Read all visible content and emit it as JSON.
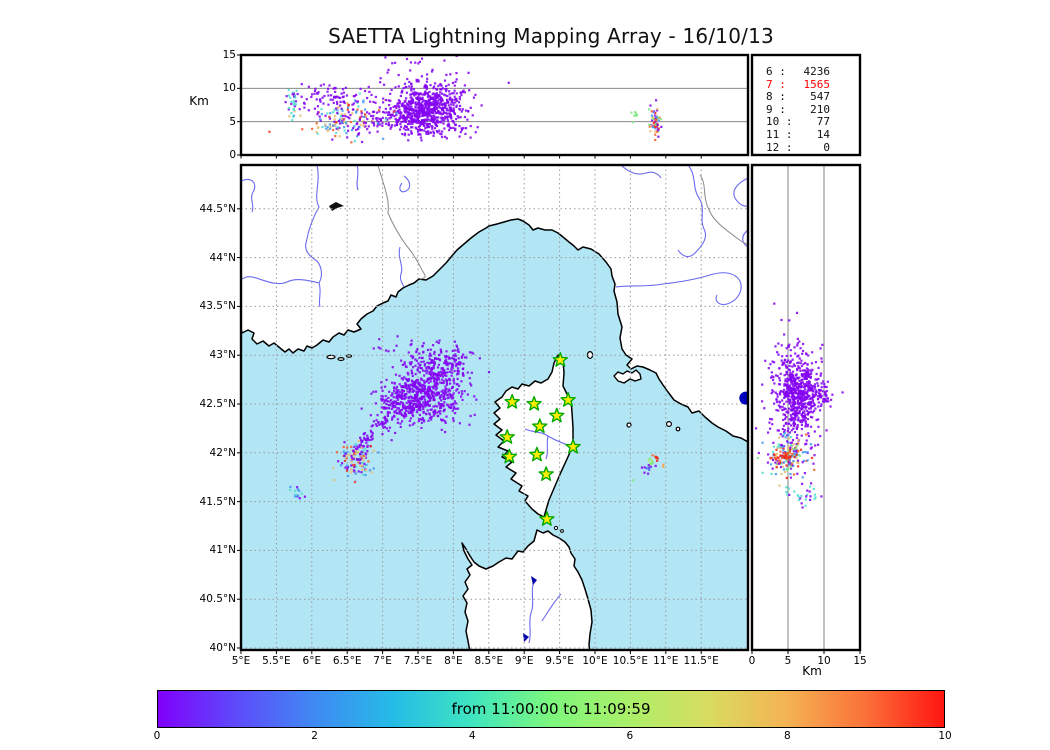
{
  "title": "SAETTA Lightning Mapping Array - 16/10/13",
  "colors": {
    "sea": "#b2e6f5",
    "land": "#ffffff",
    "coast": "#000000",
    "river": "#6a6af0",
    "country_border": "#8a8a8a",
    "grid": "#999999",
    "lake_black": "#111111",
    "lake_blue": "#0000aa",
    "star_fill": "#ffec00",
    "star_edge": "#00a800",
    "blue_marker": "#0000bb",
    "stats_highlight": "#ff0000",
    "palette": {
      "V": "#8403f2",
      "BL": "#4a5df5",
      "SB": "#3f97f2",
      "CY": "#4fe0cd",
      "GN": "#7fe87f",
      "YG": "#b6e84c",
      "TN": "#e9bd72",
      "OG": "#f9a13c",
      "OR": "#f85f2a",
      "RD": "#ef2b18"
    }
  },
  "top_panel": {
    "ylabel": "Km",
    "yticks": [
      "15",
      "10",
      "5",
      "0"
    ],
    "grid_alts": [
      5,
      10
    ],
    "alt_range": [
      0,
      15
    ]
  },
  "stats": {
    "rows": [
      {
        "level": "6",
        "count": "4236",
        "highlight": false
      },
      {
        "level": "7",
        "count": "1565",
        "highlight": true
      },
      {
        "level": "8",
        "count": "547",
        "highlight": false
      },
      {
        "level": "9",
        "count": "210",
        "highlight": false
      },
      {
        "level": "10",
        "count": "77",
        "highlight": false
      },
      {
        "level": "11",
        "count": "14",
        "highlight": false
      },
      {
        "level": "12",
        "count": "0",
        "highlight": false
      }
    ]
  },
  "map": {
    "lon_ticks": [
      "5°E",
      "5.5°E",
      "6°E",
      "6.5°E",
      "7°E",
      "7.5°E",
      "8°E",
      "8.5°E",
      "9°E",
      "9.5°E",
      "10°E",
      "10.5°E",
      "11°E",
      "11.5°E"
    ],
    "lat_ticks": [
      "40°N",
      "40.5°N",
      "41°N",
      "41.5°N",
      "42°N",
      "42.5°N",
      "43°N",
      "43.5°N",
      "44°N",
      "44.5°N"
    ],
    "stations": [
      [
        9.51,
        42.95
      ],
      [
        8.83,
        42.52
      ],
      [
        9.14,
        42.5
      ],
      [
        9.62,
        42.54
      ],
      [
        9.46,
        42.38
      ],
      [
        9.22,
        42.27
      ],
      [
        8.76,
        42.16
      ],
      [
        9.69,
        42.06
      ],
      [
        8.79,
        41.96
      ],
      [
        9.18,
        41.98
      ],
      [
        9.31,
        41.78
      ],
      [
        9.32,
        41.32
      ]
    ],
    "blue_marker": [
      12.13,
      42.56
    ]
  },
  "right_panel": {
    "xlabel": "Km",
    "xticks": [
      "0",
      "5",
      "10",
      "15"
    ],
    "grid_alts": [
      5,
      10
    ],
    "alt_range": [
      0,
      15
    ]
  },
  "colorbar": {
    "label": "from 11:00:00 to 11:09:59",
    "ticks": [
      "0",
      "2",
      "4",
      "6",
      "8",
      "10"
    ],
    "gradient": [
      {
        "c": "#8000fb",
        "p": 0
      },
      {
        "c": "#5e4bfa",
        "p": 10
      },
      {
        "c": "#3f8af2",
        "p": 20
      },
      {
        "c": "#25bce6",
        "p": 30
      },
      {
        "c": "#3fe5c0",
        "p": 40
      },
      {
        "c": "#7df77d",
        "p": 50
      },
      {
        "c": "#abef69",
        "p": 60
      },
      {
        "c": "#d8dc60",
        "p": 70
      },
      {
        "c": "#f4b353",
        "p": 80
      },
      {
        "c": "#fb7139",
        "p": 90
      },
      {
        "c": "#fe1510",
        "p": 100
      }
    ]
  },
  "chart_data": {
    "type": "scatter",
    "title": "SAETTA Lightning Mapping Array - 16/10/13",
    "time_window": "from 11:00:00 to 11:09:59",
    "panels": {
      "map": {
        "x_range_lon_E": [
          5,
          12.17
        ],
        "y_range_lat_N": [
          40,
          44.95
        ],
        "grid": "dotted"
      },
      "top": {
        "x": "longitude",
        "y_km": [
          0,
          15
        ],
        "grid_alts": [
          5,
          10
        ]
      },
      "right": {
        "x_km": [
          0,
          15
        ],
        "y": "latitude",
        "grid_alts": [
          5,
          10
        ]
      },
      "colorbar_minutes": [
        0,
        10
      ]
    },
    "station_counts": {
      "6": 4236,
      "7": 1565,
      "8": 547,
      "9": 210,
      "10": 77,
      "11": 14,
      "12": 0
    },
    "clusters": [
      {
        "p": "map",
        "a": 7.71,
        "b": 42.64,
        "sa": 0.24,
        "sb": 0.15,
        "n": 430,
        "cl": [
          [
            "V",
            1
          ]
        ]
      },
      {
        "p": "map",
        "a": 7.36,
        "b": 42.56,
        "sa": 0.18,
        "sb": 0.11,
        "n": 220,
        "cl": [
          [
            "V",
            1
          ]
        ]
      },
      {
        "p": "map",
        "a": 7.82,
        "b": 42.9,
        "sa": 0.26,
        "sb": 0.09,
        "n": 110,
        "cl": [
          [
            "V",
            1
          ]
        ]
      },
      {
        "p": "map",
        "a": 7.65,
        "b": 43.03,
        "sa": 0.36,
        "sb": 0.07,
        "n": 50,
        "cl": [
          [
            "V",
            1
          ]
        ]
      },
      {
        "p": "map",
        "a": 7.18,
        "b": 42.44,
        "sa": 0.15,
        "sb": 0.12,
        "n": 70,
        "cl": [
          [
            "V",
            1
          ]
        ]
      },
      {
        "p": "map",
        "a": 7.05,
        "b": 42.35,
        "a2": 6.63,
        "b2": 41.99,
        "sa": 0.06,
        "sb": 0.05,
        "n": 70,
        "cl": [
          [
            "V",
            1
          ]
        ]
      },
      {
        "p": "map",
        "a": 6.62,
        "b": 41.92,
        "sa": 0.12,
        "sb": 0.1,
        "n": 110,
        "cl": [
          [
            "V",
            0.33
          ],
          [
            "TN",
            0.24
          ],
          [
            "SB",
            0.2
          ],
          [
            "OR",
            0.1
          ],
          [
            "CY",
            0.08
          ],
          [
            "RD",
            0.05
          ]
        ]
      },
      {
        "p": "map",
        "a": 5.78,
        "b": 41.6,
        "sa": 0.05,
        "sb": 0.05,
        "n": 15,
        "cl": [
          [
            "V",
            0.5
          ],
          [
            "CY",
            0.3
          ],
          [
            "SB",
            0.2
          ]
        ]
      },
      {
        "p": "map",
        "a": 10.85,
        "b": 41.94,
        "sa": 0.035,
        "sb": 0.02,
        "n": 8,
        "cl": [
          [
            "RD",
            0.8
          ],
          [
            "OR",
            0.2
          ]
        ]
      },
      {
        "p": "map",
        "a": 10.78,
        "b": 41.9,
        "sa": 0.035,
        "sb": 0.02,
        "n": 8,
        "cl": [
          [
            "YG",
            0.6
          ],
          [
            "GN",
            0.4
          ]
        ]
      },
      {
        "p": "map",
        "a": 10.74,
        "b": 41.85,
        "sa": 0.04,
        "sb": 0.03,
        "n": 10,
        "cl": [
          [
            "BL",
            0.5
          ],
          [
            "V",
            0.5
          ]
        ]
      },
      {
        "p": "map",
        "a": 10.96,
        "b": 41.87,
        "sa": 0.01,
        "sb": 0.01,
        "n": 2,
        "cl": [
          [
            "OG",
            1
          ]
        ]
      },
      {
        "p": "map",
        "a": 10.52,
        "b": 41.71,
        "sa": 0.01,
        "sb": 0.01,
        "n": 1,
        "cl": [
          [
            "GN",
            1
          ]
        ]
      },
      {
        "p": "top",
        "a": 7.71,
        "b": 7.2,
        "sa": 0.24,
        "sb": 1.5,
        "n": 470,
        "cl": [
          [
            "V",
            1
          ]
        ]
      },
      {
        "p": "top",
        "a": 7.36,
        "b": 6.0,
        "sa": 0.18,
        "sb": 1.2,
        "n": 200,
        "cl": [
          [
            "V",
            1
          ]
        ]
      },
      {
        "p": "top",
        "a": 7.5,
        "b": 10.4,
        "sa": 0.36,
        "sb": 1.1,
        "n": 65,
        "cl": [
          [
            "V",
            1
          ]
        ]
      },
      {
        "p": "top",
        "a": 7.4,
        "b": 13.9,
        "sa": 0.3,
        "sb": 0.7,
        "n": 10,
        "cl": [
          [
            "V",
            1
          ]
        ]
      },
      {
        "p": "top",
        "a": 7.7,
        "b": 3.8,
        "sa": 0.3,
        "sb": 0.7,
        "n": 80,
        "cl": [
          [
            "V",
            1
          ]
        ]
      },
      {
        "p": "top",
        "a": 7.05,
        "b": 5.5,
        "a2": 6.7,
        "b2": 4.5,
        "sa": 0.08,
        "sb": 0.8,
        "n": 40,
        "cl": [
          [
            "V",
            1
          ]
        ]
      },
      {
        "p": "top",
        "a": 6.42,
        "b": 5.3,
        "sa": 0.3,
        "sb": 1.4,
        "n": 150,
        "cl": [
          [
            "V",
            0.3
          ],
          [
            "SB",
            0.25
          ],
          [
            "TN",
            0.2
          ],
          [
            "CY",
            0.1
          ],
          [
            "OR",
            0.1
          ],
          [
            "RD",
            0.05
          ]
        ]
      },
      {
        "p": "top",
        "a": 6.25,
        "b": 8.4,
        "sa": 0.28,
        "sb": 1.1,
        "n": 80,
        "cl": [
          [
            "V",
            1
          ]
        ]
      },
      {
        "p": "top",
        "a": 5.72,
        "b": 8.4,
        "sa": 0.04,
        "sb": 0.8,
        "n": 20,
        "cl": [
          [
            "CY",
            0.7
          ],
          [
            "V",
            0.3
          ]
        ]
      },
      {
        "p": "top",
        "a": 5.76,
        "b": 6.2,
        "sa": 0.03,
        "sb": 0.4,
        "n": 5,
        "cl": [
          [
            "CY",
            0.6
          ],
          [
            "SB",
            0.4
          ]
        ]
      },
      {
        "p": "top",
        "a": 10.85,
        "b": 5.0,
        "sa": 0.035,
        "sb": 1.1,
        "n": 65,
        "cl": [
          [
            "V",
            0.28
          ],
          [
            "OR",
            0.22
          ],
          [
            "RD",
            0.12
          ],
          [
            "SB",
            0.13
          ],
          [
            "TN",
            0.12
          ],
          [
            "GN",
            0.13
          ]
        ]
      },
      {
        "p": "top",
        "a": 10.56,
        "b": 5.4,
        "sa": 0.03,
        "sb": 0.9,
        "n": 7,
        "cl": [
          [
            "GN",
            1
          ]
        ]
      },
      {
        "p": "right",
        "a": 42.62,
        "b": 6.4,
        "sa": 0.17,
        "sb": 1.35,
        "n": 480,
        "cl": [
          [
            "V",
            1
          ]
        ]
      },
      {
        "p": "right",
        "a": 42.6,
        "b": 5.6,
        "sa": 0.3,
        "sb": 2.1,
        "n": 170,
        "cl": [
          [
            "V",
            1
          ]
        ]
      },
      {
        "p": "right",
        "a": 42.62,
        "b": 9.6,
        "sa": 0.1,
        "sb": 0.9,
        "n": 60,
        "cl": [
          [
            "V",
            1
          ]
        ]
      },
      {
        "p": "right",
        "a": 42.25,
        "b": 5.2,
        "sa": 0.18,
        "sb": 1.4,
        "n": 40,
        "cl": [
          [
            "V",
            1
          ]
        ]
      },
      {
        "p": "right",
        "a": 41.96,
        "b": 5.0,
        "sa": 0.11,
        "sb": 1.5,
        "n": 170,
        "cl": [
          [
            "V",
            0.25
          ],
          [
            "SB",
            0.22
          ],
          [
            "TN",
            0.18
          ],
          [
            "CY",
            0.1
          ],
          [
            "OR",
            0.1
          ],
          [
            "RD",
            0.08
          ],
          [
            "GN",
            0.07
          ]
        ]
      },
      {
        "p": "right",
        "a": 41.97,
        "b": 4.3,
        "sa": 0.025,
        "sb": 0.9,
        "n": 40,
        "cl": [
          [
            "RD",
            0.7
          ],
          [
            "OR",
            0.3
          ]
        ]
      },
      {
        "p": "right",
        "a": 41.56,
        "b": 7.3,
        "sa": 0.05,
        "sb": 1.2,
        "n": 26,
        "cl": [
          [
            "CY",
            0.5
          ],
          [
            "V",
            0.5
          ]
        ]
      }
    ]
  }
}
